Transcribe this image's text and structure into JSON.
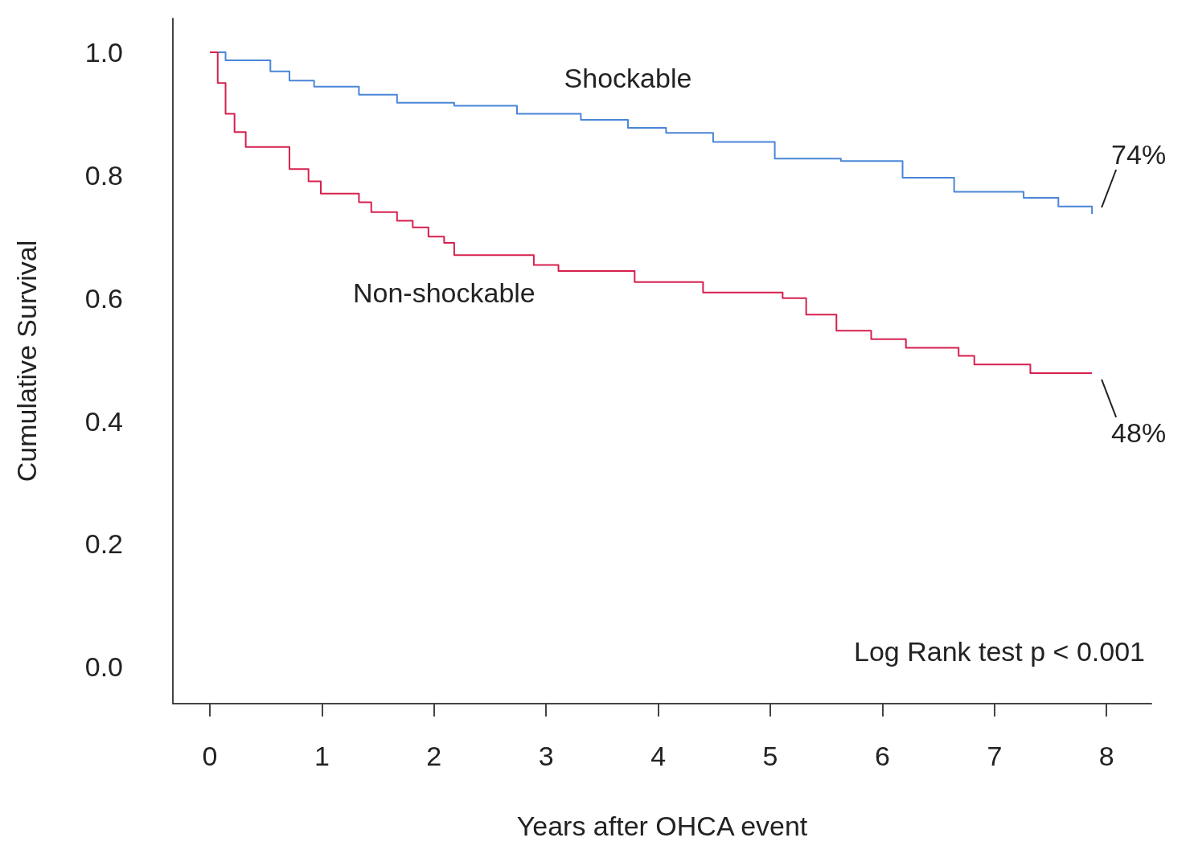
{
  "chart_data": {
    "type": "step",
    "xlabel": "Years after OHCA event",
    "ylabel": "Cumulative Survival",
    "xlim": [
      -0.33,
      8.4
    ],
    "xticks": [
      0,
      1,
      2,
      3,
      4,
      5,
      6,
      7,
      8
    ],
    "ylim": [
      -0.06,
      1.055
    ],
    "yticks": [
      {
        "value": 0,
        "label": "0.0"
      },
      {
        "value": 0.2,
        "label": "0.2"
      },
      {
        "value": 0.4,
        "label": "0.4"
      },
      {
        "value": 0.6,
        "label": "0.6"
      },
      {
        "value": 0.8,
        "label": "0.8"
      },
      {
        "value": 1,
        "label": "1.0"
      }
    ],
    "grid": false,
    "legend": false,
    "series": [
      {
        "name": "Shockable",
        "color": "#4a86d8",
        "x": [
          0,
          0.14,
          0.54,
          0.71,
          0.93,
          1.33,
          1.67,
          2.18,
          2.74,
          3.31,
          3.73,
          4.07,
          4.49,
          5.04,
          5.63,
          6.18,
          6.64,
          7.26,
          7.57,
          7.87
        ],
        "values": [
          1.0,
          0.987,
          0.969,
          0.954,
          0.944,
          0.931,
          0.918,
          0.913,
          0.9,
          0.89,
          0.877,
          0.869,
          0.854,
          0.827,
          0.823,
          0.796,
          0.773,
          0.763,
          0.749,
          0.737
        ]
      },
      {
        "name": "Non-shockable",
        "color": "#d6204e",
        "x": [
          0,
          0.07,
          0.14,
          0.22,
          0.32,
          0.55,
          0.71,
          0.88,
          0.99,
          1.33,
          1.44,
          1.67,
          1.81,
          1.95,
          2.09,
          2.18,
          2.89,
          3.11,
          3.79,
          4.4,
          5.11,
          5.32,
          5.59,
          5.9,
          6.21,
          6.68,
          6.82,
          7.32,
          7.87
        ],
        "values": [
          1.0,
          0.95,
          0.9,
          0.87,
          0.846,
          0.846,
          0.81,
          0.79,
          0.77,
          0.756,
          0.74,
          0.726,
          0.715,
          0.7,
          0.69,
          0.67,
          0.654,
          0.644,
          0.626,
          0.609,
          0.6,
          0.573,
          0.547,
          0.533,
          0.519,
          0.506,
          0.492,
          0.478,
          0.478
        ]
      }
    ],
    "annotations": [
      {
        "text": "74%",
        "x": 7.87,
        "y": 0.737
      },
      {
        "text": "48%",
        "x": 7.87,
        "y": 0.478
      },
      "Log Rank test p < 0.001"
    ]
  }
}
